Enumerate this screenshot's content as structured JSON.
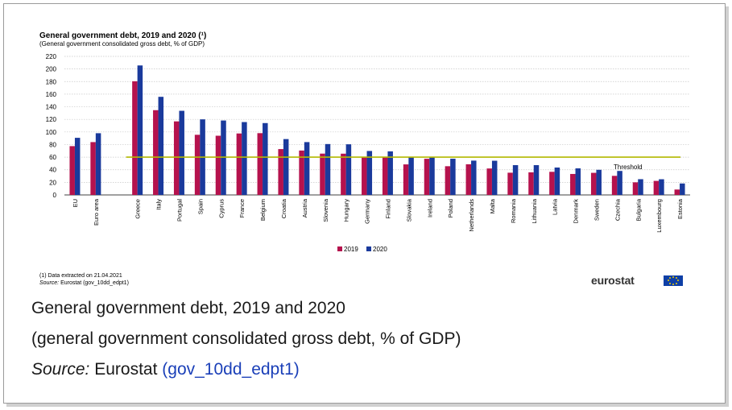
{
  "chart_data": {
    "type": "bar",
    "title": "General government debt, 2019 and 2020 (¹)",
    "subtitle": "(General government consolidated gross debt, % of GDP)",
    "categories": [
      "EU",
      "Euro area",
      "Greece",
      "Italy",
      "Portugal",
      "Spain",
      "Cyprus",
      "France",
      "Belgium",
      "Croatia",
      "Austria",
      "Slovenia",
      "Hungary",
      "Germany",
      "Finland",
      "Slovakia",
      "Ireland",
      "Poland",
      "Netherlands",
      "Malta",
      "Romania",
      "Lithuania",
      "Latvia",
      "Denmark",
      "Sweden",
      "Czechia",
      "Bulgaria",
      "Luxembourg",
      "Estonia"
    ],
    "series": [
      {
        "name": "2019",
        "color": "#b5124d",
        "values": [
          77.5,
          83.9,
          180.5,
          134.6,
          116.8,
          95.5,
          94.0,
          97.6,
          98.1,
          72.8,
          70.5,
          65.6,
          65.5,
          59.7,
          59.5,
          48.5,
          57.4,
          45.6,
          48.7,
          42.0,
          35.3,
          35.9,
          36.7,
          33.3,
          35.1,
          30.3,
          20.0,
          22.3,
          8.6
        ]
      },
      {
        "name": "2020",
        "color": "#1a3a9c",
        "values": [
          90.7,
          98.0,
          205.6,
          155.8,
          133.6,
          120.0,
          118.2,
          115.7,
          114.1,
          88.7,
          83.9,
          80.8,
          80.4,
          69.8,
          69.2,
          60.6,
          59.5,
          57.5,
          54.5,
          54.3,
          47.3,
          47.3,
          43.5,
          42.2,
          39.9,
          38.1,
          25.0,
          24.9,
          18.2
        ]
      }
    ],
    "threshold": {
      "value": 60,
      "label": "Threshold",
      "color": "#b3b800"
    },
    "ylim": [
      0,
      220
    ],
    "yticks": [
      0,
      20,
      40,
      60,
      80,
      100,
      120,
      140,
      160,
      180,
      200,
      220
    ],
    "xlabel": "",
    "ylabel": "",
    "grid": true,
    "legend": "bottom-center"
  },
  "footnote": "(1) Data extracted on 21.04.2021",
  "source_label": "Source:",
  "source_value": " Eurostat (gov_10dd_edpt1)",
  "logo_text": "eurostat",
  "caption": {
    "line1": "General government debt, 2019 and 2020",
    "line2": "(general government consolidated gross debt, % of GDP)",
    "source_label": "Source:",
    "source_prefix": " Eurostat ",
    "source_link": "(gov_10dd_edpt1)"
  }
}
